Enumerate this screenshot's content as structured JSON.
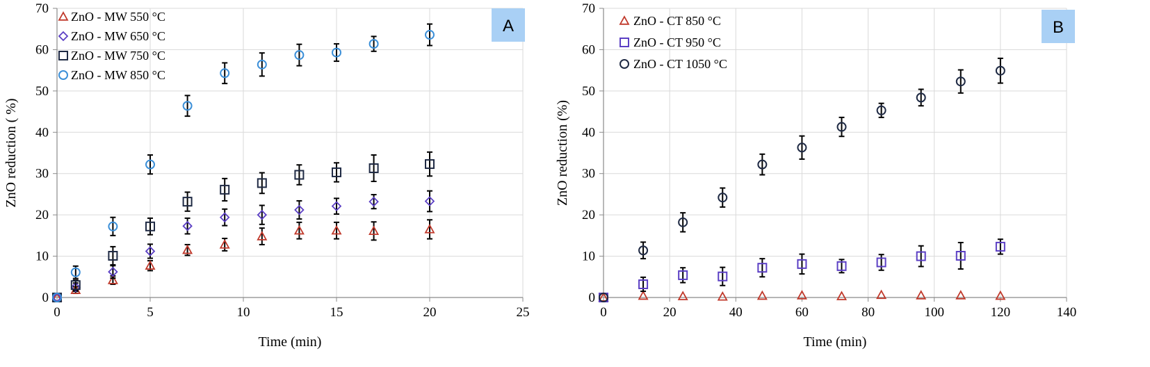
{
  "chart_data": [
    {
      "type": "scatter",
      "panel_label": "A",
      "xlabel": "Time (min)",
      "ylabel": "ZnO reduction ( %)",
      "xlim": [
        0,
        25
      ],
      "ylim": [
        0,
        70
      ],
      "xticks": [
        0,
        5,
        10,
        15,
        20,
        25
      ],
      "yticks": [
        0,
        10,
        20,
        30,
        40,
        50,
        60,
        70
      ],
      "grid": true,
      "legend_position": "top-left",
      "series": [
        {
          "name": "ZnO - MW 550 °C",
          "marker": "triangle",
          "color": "#c0392b",
          "points": [
            [
              0,
              0,
              0
            ],
            [
              1,
              1.8,
              0.8
            ],
            [
              3,
              4.2,
              1.0
            ],
            [
              5,
              7.7,
              1.2
            ],
            [
              7,
              11.5,
              1.3
            ],
            [
              9,
              12.8,
              1.5
            ],
            [
              11,
              14.8,
              2.0
            ],
            [
              13,
              16.2,
              2.0
            ],
            [
              15,
              16.2,
              2.0
            ],
            [
              17,
              16.1,
              2.2
            ],
            [
              20,
              16.5,
              2.3
            ]
          ]
        },
        {
          "name": "ZnO - MW 650 °C",
          "marker": "diamond",
          "color": "#5b3fc4",
          "points": [
            [
              0,
              0,
              0
            ],
            [
              1,
              2.5,
              1.0
            ],
            [
              3,
              6.2,
              1.5
            ],
            [
              5,
              11.2,
              1.7
            ],
            [
              7,
              17.3,
              1.9
            ],
            [
              9,
              19.4,
              2.0
            ],
            [
              11,
              20.0,
              2.3
            ],
            [
              13,
              21.2,
              2.2
            ],
            [
              15,
              22.1,
              1.9
            ],
            [
              17,
              23.2,
              1.7
            ],
            [
              20,
              23.3,
              2.5
            ]
          ]
        },
        {
          "name": "ZnO - MW 750 °C",
          "marker": "square",
          "color": "#1f2a44",
          "points": [
            [
              0,
              0,
              0
            ],
            [
              1,
              3.0,
              1.2
            ],
            [
              3,
              10.1,
              2.2
            ],
            [
              5,
              17.2,
              2.0
            ],
            [
              7,
              23.2,
              2.3
            ],
            [
              9,
              26.1,
              2.7
            ],
            [
              11,
              27.7,
              2.5
            ],
            [
              13,
              29.7,
              2.4
            ],
            [
              15,
              30.3,
              2.3
            ],
            [
              17,
              31.3,
              3.2
            ],
            [
              20,
              32.3,
              2.9
            ]
          ]
        },
        {
          "name": "ZnO - MW 850 °C",
          "marker": "circle",
          "color": "#3b8fd8",
          "points": [
            [
              0,
              0,
              0
            ],
            [
              1,
              6.1,
              1.5
            ],
            [
              3,
              17.2,
              2.2
            ],
            [
              5,
              32.2,
              2.3
            ],
            [
              7,
              46.4,
              2.5
            ],
            [
              9,
              54.3,
              2.5
            ],
            [
              11,
              56.4,
              2.8
            ],
            [
              13,
              58.7,
              2.6
            ],
            [
              15,
              59.3,
              2.1
            ],
            [
              17,
              61.4,
              1.8
            ],
            [
              20,
              63.6,
              2.6
            ]
          ]
        }
      ]
    },
    {
      "type": "scatter",
      "panel_label": "B",
      "xlabel": "Time (min)",
      "ylabel": "ZnO reduction (%)",
      "xlim": [
        0,
        140
      ],
      "ylim": [
        0,
        70
      ],
      "xticks": [
        0,
        20,
        40,
        60,
        80,
        100,
        120,
        140
      ],
      "yticks": [
        0,
        10,
        20,
        30,
        40,
        50,
        60,
        70
      ],
      "grid": true,
      "legend_position": "top-left",
      "series": [
        {
          "name": "ZnO - CT 850 °C",
          "marker": "triangle",
          "color": "#c0392b",
          "points": [
            [
              0,
              0,
              0
            ],
            [
              12,
              0.4,
              0
            ],
            [
              24,
              0.3,
              0
            ],
            [
              36,
              0.2,
              0
            ],
            [
              48,
              0.4,
              0
            ],
            [
              60,
              0.5,
              0
            ],
            [
              72,
              0.3,
              0
            ],
            [
              84,
              0.6,
              0
            ],
            [
              96,
              0.5,
              0
            ],
            [
              108,
              0.5,
              0
            ],
            [
              120,
              0.4,
              0
            ]
          ]
        },
        {
          "name": "ZnO - CT 950 °C",
          "marker": "square",
          "color": "#5b3fc4",
          "points": [
            [
              0,
              0,
              0
            ],
            [
              12,
              3.2,
              1.7
            ],
            [
              24,
              5.4,
              1.8
            ],
            [
              36,
              5.1,
              2.2
            ],
            [
              48,
              7.2,
              2.2
            ],
            [
              60,
              8.1,
              2.4
            ],
            [
              72,
              7.6,
              1.6
            ],
            [
              84,
              8.5,
              1.9
            ],
            [
              96,
              10.0,
              2.5
            ],
            [
              108,
              10.1,
              3.2
            ],
            [
              120,
              12.3,
              1.8
            ]
          ]
        },
        {
          "name": "ZnO - CT 1050 °C",
          "marker": "circle",
          "color": "#1f2a44",
          "points": [
            [
              0,
              0,
              0
            ],
            [
              12,
              11.4,
              2.0
            ],
            [
              24,
              18.2,
              2.3
            ],
            [
              36,
              24.2,
              2.3
            ],
            [
              48,
              32.2,
              2.5
            ],
            [
              60,
              36.3,
              2.8
            ],
            [
              72,
              41.3,
              2.3
            ],
            [
              84,
              45.3,
              1.7
            ],
            [
              96,
              48.4,
              2.0
            ],
            [
              108,
              52.3,
              2.8
            ],
            [
              120,
              54.9,
              3.0
            ]
          ]
        }
      ]
    }
  ],
  "colors": {
    "panel_label_bg": "#a9d0f5",
    "grid": "#d9d9d9",
    "axis": "#8a8a8a",
    "error_bar": "#000000"
  }
}
